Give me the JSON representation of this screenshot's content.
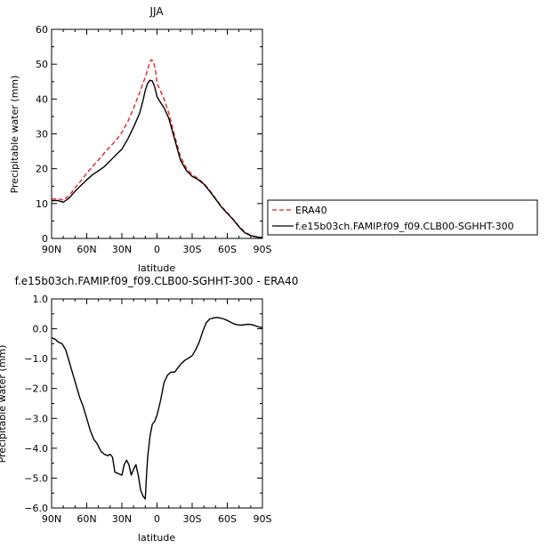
{
  "chart_data": [
    {
      "type": "line",
      "title": "JJA",
      "xlabel": "latitude",
      "ylabel": "Precipitable water (mm)",
      "xlim": [
        90,
        -90
      ],
      "ylim": [
        0,
        60
      ],
      "xticks": [
        90,
        60,
        30,
        0,
        -30,
        -60,
        -90
      ],
      "xtick_labels": [
        "90N",
        "60N",
        "30N",
        "0",
        "30S",
        "60S",
        "90S"
      ],
      "yticks": [
        0,
        10,
        20,
        30,
        40,
        50,
        60
      ],
      "ytick_labels": [
        "0",
        "10",
        "20",
        "30",
        "40",
        "50",
        "60"
      ],
      "legend_position": "right",
      "series": [
        {
          "name": "ERA40",
          "color": "#e8211f",
          "dash": "dashed",
          "points": [
            [
              90,
              11.2
            ],
            [
              85,
              11.4
            ],
            [
              80,
              11.0
            ],
            [
              75,
              12.3
            ],
            [
              70,
              14.5
            ],
            [
              65,
              16.5
            ],
            [
              60,
              18.7
            ],
            [
              55,
              20.7
            ],
            [
              50,
              22.5
            ],
            [
              45,
              24.5
            ],
            [
              40,
              26.4
            ],
            [
              35,
              28.1
            ],
            [
              30,
              30.4
            ],
            [
              25,
              33.5
            ],
            [
              20,
              37.4
            ],
            [
              15,
              41.8
            ],
            [
              10,
              46.3
            ],
            [
              7,
              49.6
            ],
            [
              5,
              51.3
            ],
            [
              3,
              50.8
            ],
            [
              1,
              47.5
            ],
            [
              0,
              44.5
            ],
            [
              -3,
              42.3
            ],
            [
              -6,
              40.0
            ],
            [
              -10,
              36.0
            ],
            [
              -15,
              29.5
            ],
            [
              -20,
              23.5
            ],
            [
              -25,
              20.2
            ],
            [
              -30,
              18.3
            ],
            [
              -35,
              17.2
            ],
            [
              -40,
              15.8
            ],
            [
              -45,
              13.8
            ],
            [
              -50,
              11.5
            ],
            [
              -55,
              9.2
            ],
            [
              -60,
              7.4
            ],
            [
              -65,
              5.5
            ],
            [
              -70,
              3.5
            ],
            [
              -75,
              1.8
            ],
            [
              -80,
              0.9
            ],
            [
              -85,
              0.5
            ],
            [
              -90,
              0.2
            ]
          ]
        },
        {
          "name": "f.e15b03ch.FAMIP.f09_f09.CLB00-SGHHT-300",
          "color": "#000000",
          "dash": "solid",
          "points": [
            [
              90,
              10.8
            ],
            [
              85,
              10.9
            ],
            [
              80,
              10.4
            ],
            [
              75,
              11.6
            ],
            [
              70,
              13.5
            ],
            [
              65,
              15.2
            ],
            [
              60,
              16.8
            ],
            [
              55,
              18.3
            ],
            [
              50,
              19.4
            ],
            [
              45,
              20.6
            ],
            [
              40,
              22.3
            ],
            [
              35,
              24.0
            ],
            [
              30,
              25.6
            ],
            [
              25,
              28.5
            ],
            [
              20,
              32.0
            ],
            [
              15,
              35.8
            ],
            [
              12,
              39.5
            ],
            [
              10,
              42.5
            ],
            [
              8,
              44.5
            ],
            [
              6,
              45.4
            ],
            [
              4,
              45.2
            ],
            [
              2,
              43.5
            ],
            [
              0,
              40.7
            ],
            [
              -3,
              39.0
            ],
            [
              -6,
              37.5
            ],
            [
              -10,
              34.5
            ],
            [
              -15,
              28.5
            ],
            [
              -20,
              22.5
            ],
            [
              -25,
              19.5
            ],
            [
              -30,
              17.8
            ],
            [
              -35,
              16.9
            ],
            [
              -40,
              15.6
            ],
            [
              -45,
              13.5
            ],
            [
              -50,
              11.3
            ],
            [
              -55,
              9.0
            ],
            [
              -60,
              7.2
            ],
            [
              -65,
              5.4
            ],
            [
              -70,
              3.3
            ],
            [
              -75,
              1.6
            ],
            [
              -80,
              0.8
            ],
            [
              -85,
              0.4
            ],
            [
              -90,
              0.2
            ]
          ]
        }
      ]
    },
    {
      "type": "line",
      "title": "f.e15b03ch.FAMIP.f09_f09.CLB00-SGHHT-300 - ERA40",
      "xlabel": "latitude",
      "ylabel": "Precipitable water (mm)",
      "xlim": [
        90,
        -90
      ],
      "ylim": [
        -6.0,
        1.0
      ],
      "xticks": [
        90,
        60,
        30,
        0,
        -30,
        -60,
        -90
      ],
      "xtick_labels": [
        "90N",
        "60N",
        "30N",
        "0",
        "30S",
        "60S",
        "90S"
      ],
      "yticks": [
        1.0,
        0.0,
        -1.0,
        -2.0,
        -3.0,
        -4.0,
        -5.0,
        -6.0
      ],
      "ytick_labels": [
        "1.0",
        "0.0",
        "−1.0",
        "−2.0",
        "−3.0",
        "−4.0",
        "−5.0",
        "−6.0"
      ],
      "series": [
        {
          "name": "",
          "color": "#000000",
          "dash": "solid",
          "points": [
            [
              90,
              -0.3
            ],
            [
              87,
              -0.35
            ],
            [
              84,
              -0.45
            ],
            [
              81,
              -0.5
            ],
            [
              78,
              -0.7
            ],
            [
              75,
              -1.1
            ],
            [
              72,
              -1.5
            ],
            [
              69,
              -1.9
            ],
            [
              66,
              -2.3
            ],
            [
              63,
              -2.6
            ],
            [
              60,
              -3.0
            ],
            [
              57,
              -3.4
            ],
            [
              54,
              -3.7
            ],
            [
              51,
              -3.85
            ],
            [
              48,
              -4.1
            ],
            [
              45,
              -4.2
            ],
            [
              42,
              -4.25
            ],
            [
              40,
              -4.2
            ],
            [
              38,
              -4.3
            ],
            [
              36,
              -4.8
            ],
            [
              33,
              -4.85
            ],
            [
              30,
              -4.9
            ],
            [
              28,
              -4.55
            ],
            [
              26,
              -4.4
            ],
            [
              24,
              -4.55
            ],
            [
              22,
              -4.9
            ],
            [
              20,
              -4.7
            ],
            [
              18,
              -4.55
            ],
            [
              16,
              -4.9
            ],
            [
              14,
              -5.4
            ],
            [
              12,
              -5.6
            ],
            [
              10,
              -5.7
            ],
            [
              9,
              -4.9
            ],
            [
              8,
              -4.3
            ],
            [
              6,
              -3.6
            ],
            [
              4,
              -3.2
            ],
            [
              2,
              -3.1
            ],
            [
              0,
              -2.9
            ],
            [
              -3,
              -2.4
            ],
            [
              -6,
              -1.8
            ],
            [
              -9,
              -1.55
            ],
            [
              -12,
              -1.45
            ],
            [
              -15,
              -1.45
            ],
            [
              -18,
              -1.3
            ],
            [
              -21,
              -1.15
            ],
            [
              -24,
              -1.05
            ],
            [
              -27,
              -0.98
            ],
            [
              -30,
              -0.9
            ],
            [
              -33,
              -0.7
            ],
            [
              -36,
              -0.45
            ],
            [
              -39,
              -0.1
            ],
            [
              -42,
              0.2
            ],
            [
              -45,
              0.33
            ],
            [
              -48,
              0.36
            ],
            [
              -51,
              0.38
            ],
            [
              -54,
              0.36
            ],
            [
              -57,
              0.33
            ],
            [
              -60,
              0.28
            ],
            [
              -63,
              0.22
            ],
            [
              -66,
              0.16
            ],
            [
              -69,
              0.13
            ],
            [
              -72,
              0.12
            ],
            [
              -75,
              0.14
            ],
            [
              -78,
              0.15
            ],
            [
              -81,
              0.14
            ],
            [
              -84,
              0.1
            ],
            [
              -87,
              0.06
            ],
            [
              -90,
              0.04
            ]
          ]
        }
      ]
    }
  ]
}
